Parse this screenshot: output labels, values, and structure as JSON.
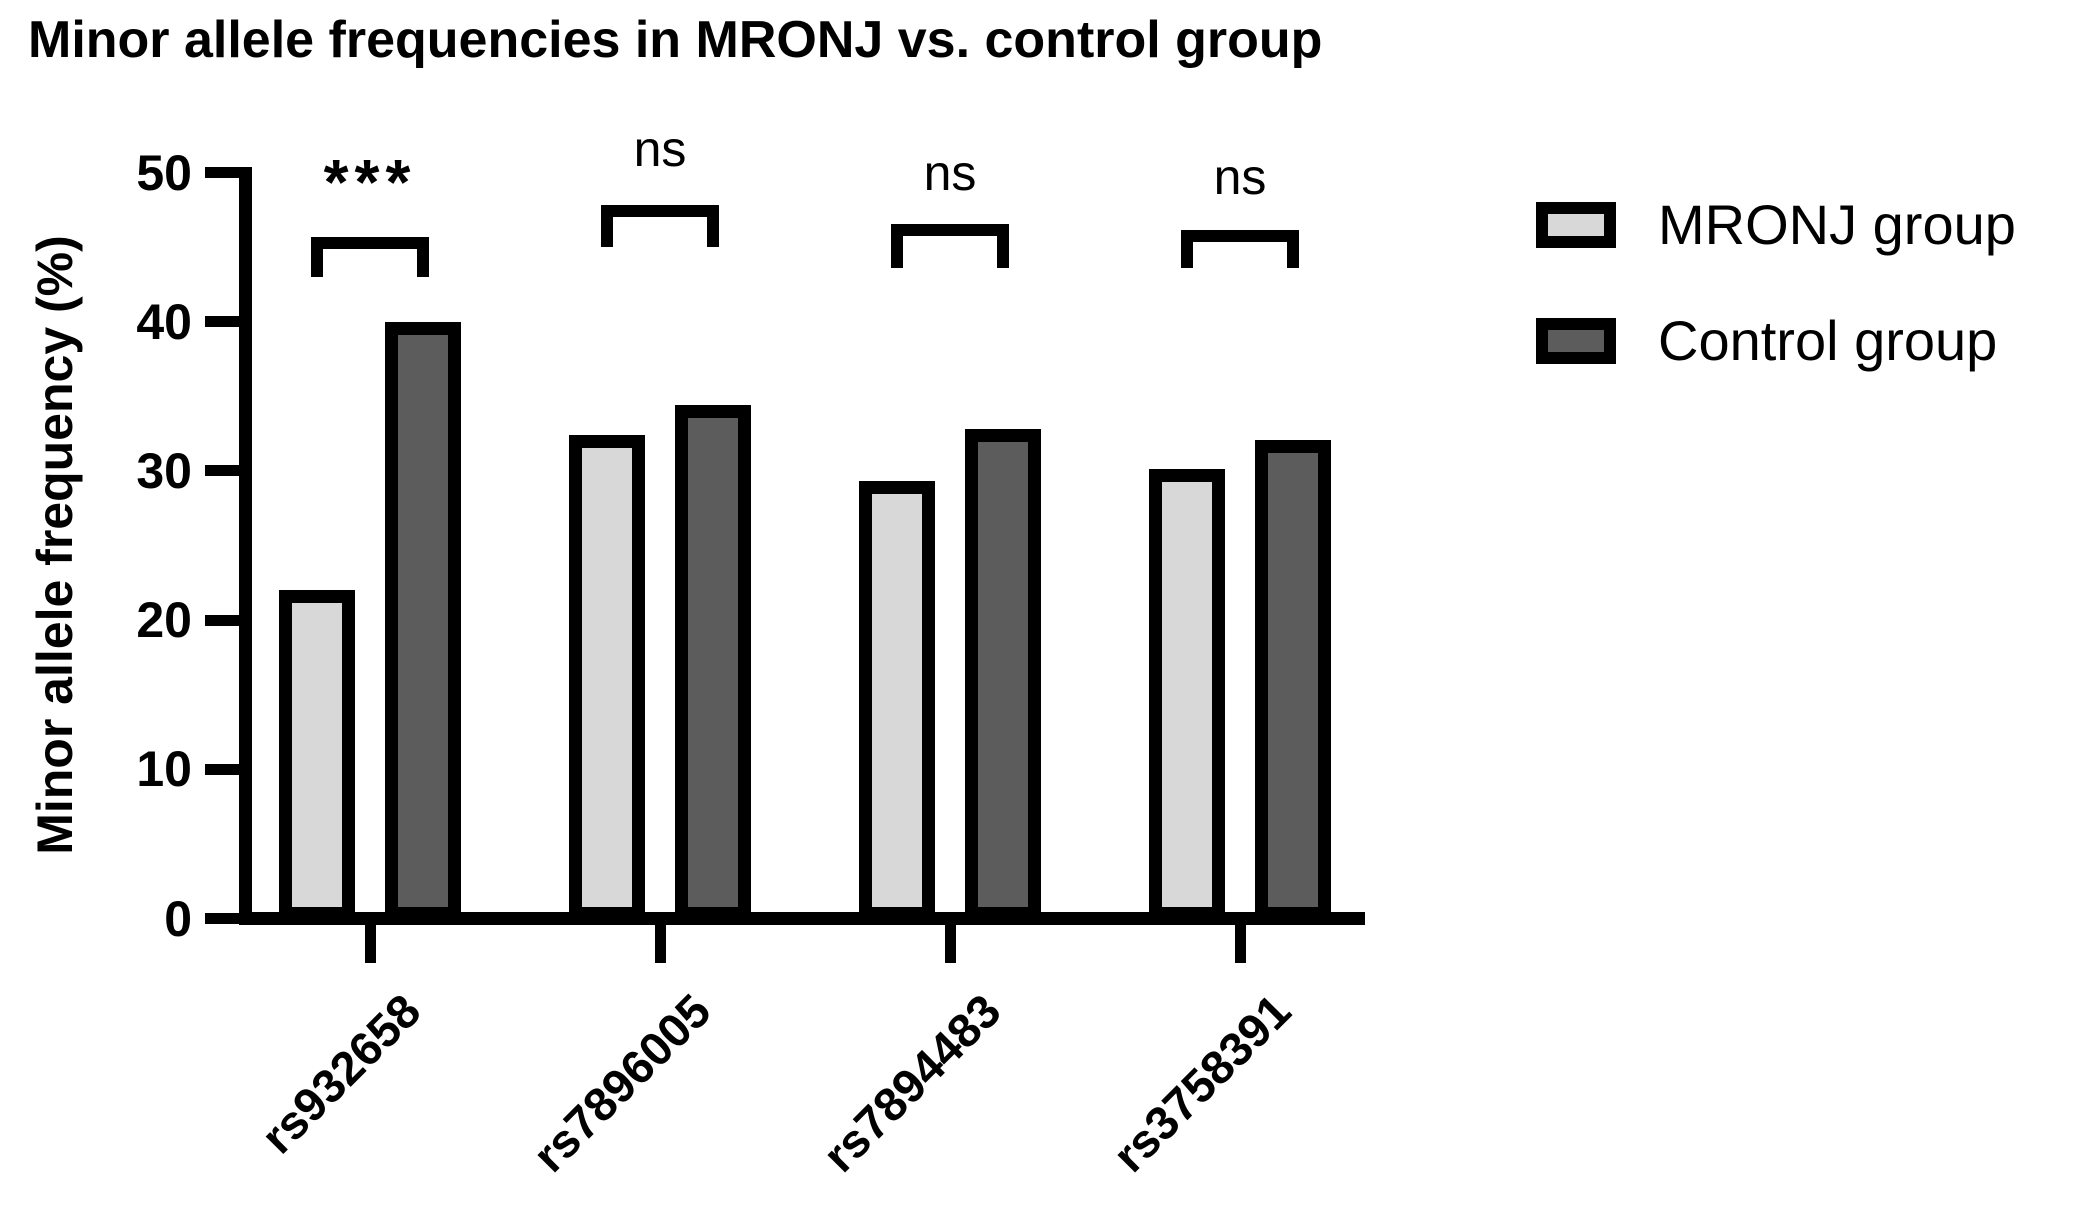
{
  "chart_data": {
    "type": "bar",
    "title": "Minor allele frequencies in MRONJ vs. control group",
    "ylabel": "Minor allele frequency (%)",
    "xlabel": "",
    "categories": [
      "rs932658",
      "rs7896005",
      "rs7894483",
      "rs3758391"
    ],
    "series": [
      {
        "name": "MRONJ group",
        "color": "#d8d8d8",
        "values": [
          22.0,
          32.4,
          29.3,
          30.1
        ]
      },
      {
        "name": "Control group",
        "color": "#5c5c5c",
        "values": [
          40.0,
          34.4,
          32.8,
          32.1
        ]
      }
    ],
    "ylim": [
      0,
      50
    ],
    "yticks": [
      0,
      10,
      20,
      30,
      40,
      50
    ],
    "significance_labels": [
      "***",
      "ns",
      "ns",
      "ns"
    ],
    "bar_outline_color": "#000000",
    "axis_color": "#000000",
    "legend_position": "right",
    "grid": false
  },
  "legend": {
    "items": [
      {
        "label": "MRONJ group",
        "color": "#d8d8d8"
      },
      {
        "label": "Control group",
        "color": "#5c5c5c"
      }
    ]
  }
}
